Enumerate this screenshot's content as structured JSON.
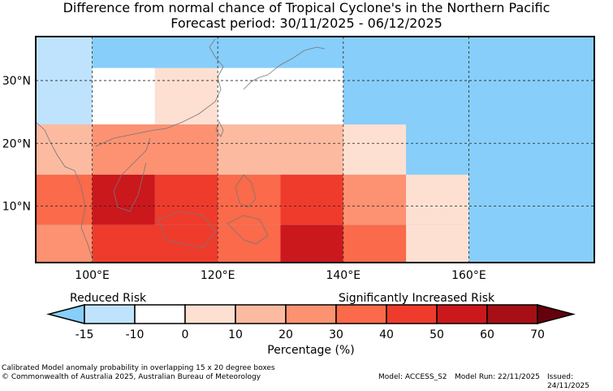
{
  "title_line1": "Difference from normal chance of Tropical Cyclone's in the Northern Pacific",
  "title_line2": "Forecast period: 30/11/2025 - 06/12/2025",
  "map": {
    "lon_range": [
      91,
      180
    ],
    "lat_range": [
      1,
      37
    ],
    "lat_ticks": [
      "30°N",
      "20°N",
      "10°N"
    ],
    "lon_ticks": [
      "100°E",
      "120°E",
      "140°E",
      "160°E"
    ],
    "gridlines": "dashed",
    "ocean_color": "#87cefa",
    "cells": [
      {
        "lon": [
          91,
          100
        ],
        "lat": [
          23,
          37
        ],
        "pct": -15
      },
      {
        "lon": [
          100,
          110
        ],
        "lat": [
          23,
          32
        ],
        "pct": -10
      },
      {
        "lon": [
          110,
          120
        ],
        "lat": [
          23,
          32
        ],
        "pct": 0
      },
      {
        "lon": [
          120,
          140
        ],
        "lat": [
          23,
          32
        ],
        "pct": -10
      },
      {
        "lon": [
          91,
          100
        ],
        "lat": [
          15,
          23
        ],
        "pct": 15
      },
      {
        "lon": [
          100,
          120
        ],
        "lat": [
          15,
          23
        ],
        "pct": 25
      },
      {
        "lon": [
          120,
          140
        ],
        "lat": [
          15,
          23
        ],
        "pct": 15
      },
      {
        "lon": [
          140,
          150
        ],
        "lat": [
          15,
          23
        ],
        "pct": 5
      },
      {
        "lon": [
          91,
          100
        ],
        "lat": [
          7,
          15
        ],
        "pct": 35
      },
      {
        "lon": [
          100,
          110
        ],
        "lat": [
          7,
          15
        ],
        "pct": 55
      },
      {
        "lon": [
          110,
          120
        ],
        "lat": [
          7,
          15
        ],
        "pct": 45
      },
      {
        "lon": [
          120,
          130
        ],
        "lat": [
          7,
          15
        ],
        "pct": 35
      },
      {
        "lon": [
          130,
          140
        ],
        "lat": [
          7,
          15
        ],
        "pct": 45
      },
      {
        "lon": [
          140,
          150
        ],
        "lat": [
          7,
          15
        ],
        "pct": 25
      },
      {
        "lon": [
          150,
          160
        ],
        "lat": [
          7,
          15
        ],
        "pct": 0
      },
      {
        "lon": [
          150,
          160
        ],
        "lat": [
          1,
          7
        ],
        "pct": 0
      },
      {
        "lon": [
          91,
          100
        ],
        "lat": [
          1,
          7
        ],
        "pct": 25
      },
      {
        "lon": [
          100,
          120
        ],
        "lat": [
          1,
          7
        ],
        "pct": 45
      },
      {
        "lon": [
          120,
          130
        ],
        "lat": [
          1,
          7
        ],
        "pct": 35
      },
      {
        "lon": [
          130,
          140
        ],
        "lat": [
          1,
          7
        ],
        "pct": 55
      },
      {
        "lon": [
          140,
          150
        ],
        "lat": [
          1,
          7
        ],
        "pct": 35
      }
    ]
  },
  "colorbar": {
    "label_reduced": "Reduced Risk",
    "label_increased": "Significantly Increased Risk",
    "ticks": [
      "-15",
      "-10",
      "0",
      "10",
      "20",
      "30",
      "40",
      "50",
      "60",
      "70"
    ],
    "under_color": "#87cefa",
    "over_color": "#67000d",
    "colors": [
      "#bfe3fc",
      "#ffffff",
      "#fee0d2",
      "#fcbba1",
      "#fc9272",
      "#fb6a4a",
      "#ef3b2c",
      "#cb181d",
      "#a50f15"
    ],
    "xlabel": "Percentage (%)"
  },
  "footer": {
    "line1": "Calibrated Model anomaly probability in overlapping 15 x 20 degree boxes",
    "line2": "© Commonwealth of Australia 2025, Australian Bureau of Meteorology",
    "model": "Model: ACCESS_S2",
    "run": "Model Run: 22/11/2025",
    "issued": "Issued: 24/11/2025"
  }
}
